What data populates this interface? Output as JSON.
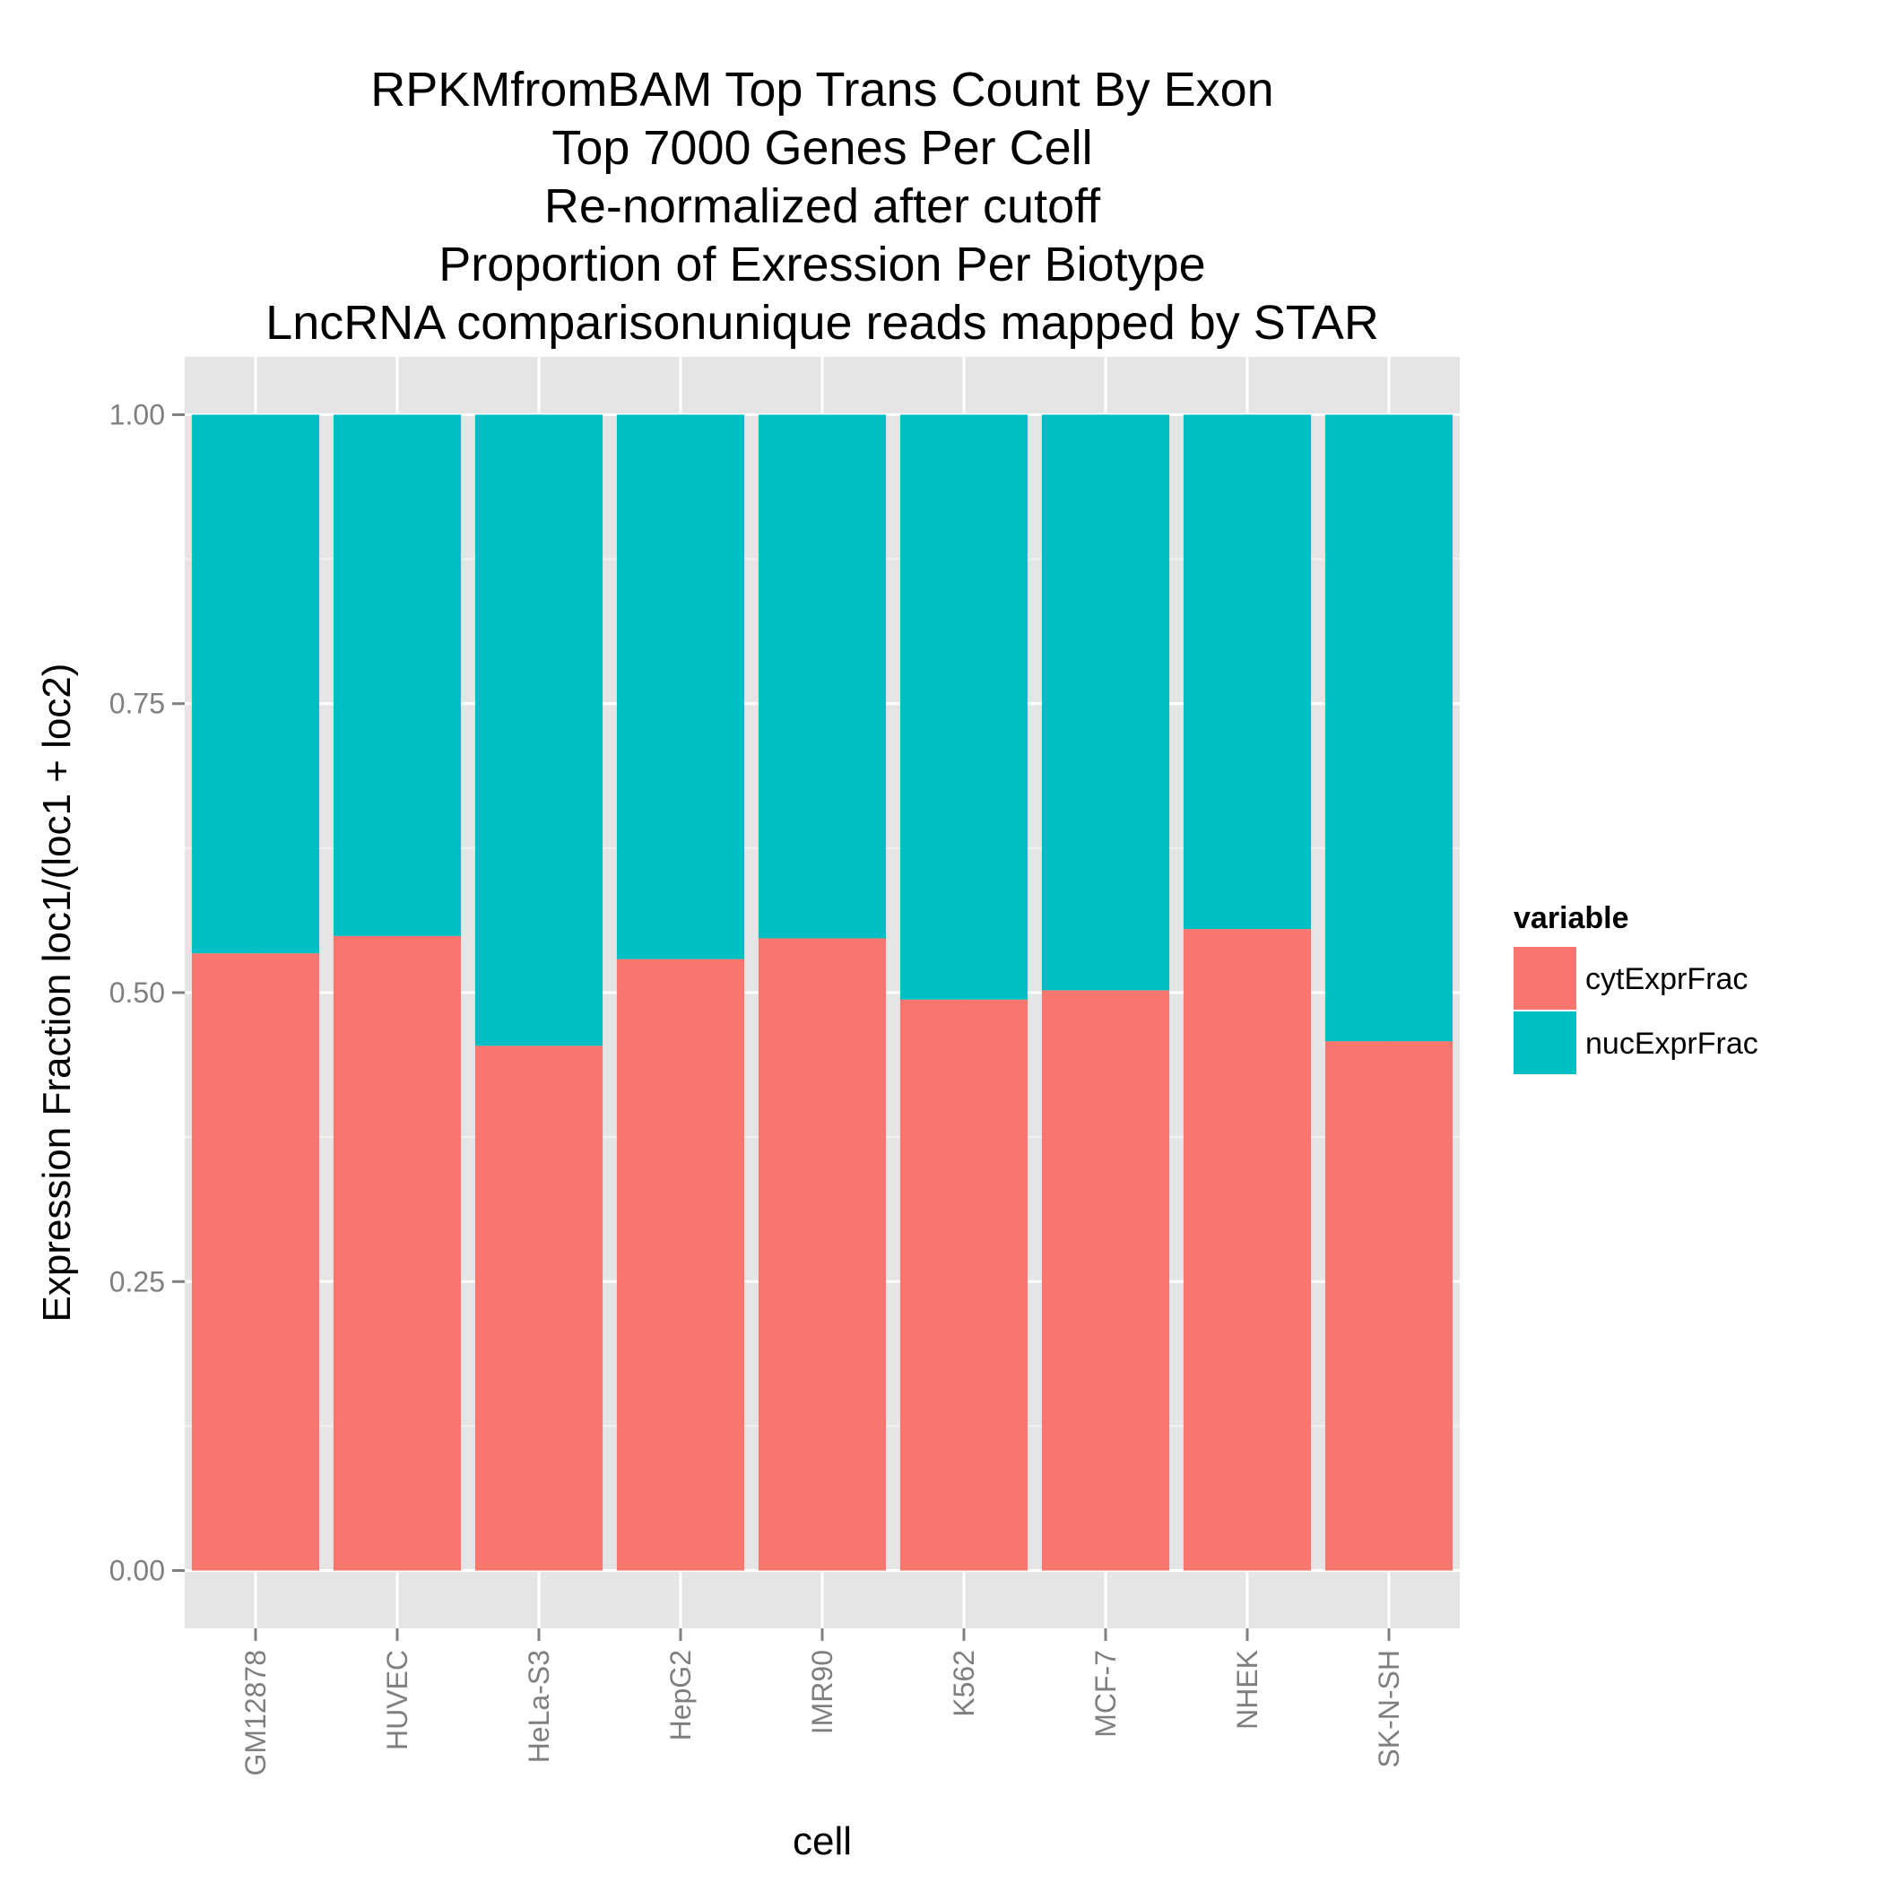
{
  "colors": {
    "panel_background": "#E5E5E5",
    "grid_major": "#FFFFFF",
    "grid_minor": "#F2F2F2",
    "tick_text": "#7F7F7F",
    "cytExprFrac": "#F8766D",
    "nucExprFrac": "#00BFC4"
  },
  "chart_data": {
    "type": "bar",
    "stacked": true,
    "title": [
      "RPKMfromBAM Top Trans Count By Exon",
      "Top 7000 Genes Per Cell",
      "Re-normalized after cutoff",
      "Proportion of Exression Per Biotype",
      "LncRNA comparisonunique reads mapped by STAR"
    ],
    "xlabel": "cell",
    "ylabel": "Expression Fraction loc1/(loc1 + loc2)",
    "categories": [
      "GM12878",
      "HUVEC",
      "HeLa-S3",
      "HepG2",
      "IMR90",
      "K562",
      "MCF-7",
      "NHEK",
      "SK-N-SH"
    ],
    "ylim": [
      -0.05,
      1.05
    ],
    "yticks": [
      0.0,
      0.25,
      0.5,
      0.75,
      1.0
    ],
    "ytick_labels": [
      "0.00",
      "0.25",
      "0.50",
      "0.75",
      "1.00"
    ],
    "grid": true,
    "legend": {
      "title": "variable",
      "position": "right"
    },
    "series": [
      {
        "name": "cytExprFrac",
        "values": [
          0.534,
          0.549,
          0.454,
          0.529,
          0.547,
          0.494,
          0.502,
          0.555,
          0.458
        ]
      },
      {
        "name": "nucExprFrac",
        "values": [
          0.466,
          0.451,
          0.546,
          0.471,
          0.453,
          0.506,
          0.498,
          0.445,
          0.542
        ]
      }
    ]
  }
}
